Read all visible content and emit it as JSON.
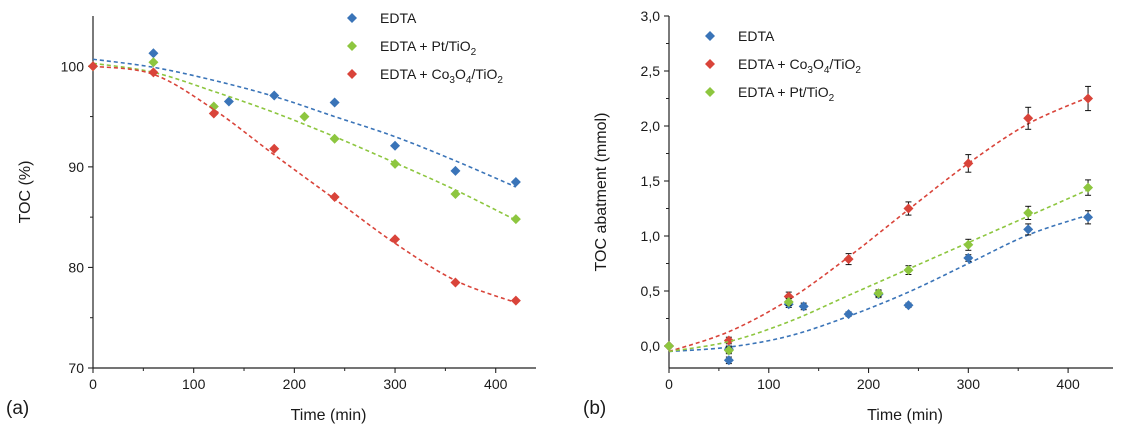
{
  "chart_data": [
    {
      "type": "scatter",
      "panel_label": "(a)",
      "xlabel": "Time (min)",
      "ylabel": "TOC (%)",
      "xlim": [
        0,
        440
      ],
      "ylim": [
        70,
        105
      ],
      "x_ticks": [
        "0",
        "100",
        "200",
        "300",
        "400"
      ],
      "y_ticks": [
        "70",
        "80",
        "90",
        "100"
      ],
      "legend_position": "top-right",
      "series": [
        {
          "name": "EDTA",
          "color": "#3a74b8",
          "x": [
            60,
            135,
            180,
            240,
            300,
            360,
            420
          ],
          "y": [
            101.3,
            96.5,
            97.1,
            96.4,
            92.1,
            89.6,
            88.5
          ],
          "fit": [
            [
              0,
              100.7
            ],
            [
              60,
              99.9
            ],
            [
              120,
              98.6
            ],
            [
              180,
              97.0
            ],
            [
              240,
              95.0
            ],
            [
              300,
              93.0
            ],
            [
              360,
              90.6
            ],
            [
              420,
              88.0
            ]
          ]
        },
        {
          "name": "EDTA + Pt/TiO",
          "sub": "2",
          "color": "#8dc63f",
          "x": [
            0,
            60,
            120,
            210,
            240,
            300,
            360,
            420
          ],
          "y": [
            100.0,
            100.4,
            96.0,
            95.0,
            92.8,
            90.3,
            87.3,
            84.8
          ],
          "fit": [
            [
              0,
              100.3
            ],
            [
              60,
              99.4
            ],
            [
              120,
              97.5
            ],
            [
              180,
              95.4
            ],
            [
              240,
              93.0
            ],
            [
              300,
              90.4
            ],
            [
              360,
              87.7
            ],
            [
              420,
              84.7
            ]
          ]
        },
        {
          "name_parts": [
            "EDTA + Co",
            "3",
            "O",
            "4",
            "/TiO",
            "2"
          ],
          "color": "#d9443a",
          "x": [
            0,
            60,
            120,
            180,
            240,
            300,
            360,
            420
          ],
          "y": [
            100.0,
            99.4,
            95.3,
            91.8,
            87.0,
            82.8,
            78.5,
            76.7
          ],
          "fit": [
            [
              0,
              100.0
            ],
            [
              60,
              99.2
            ],
            [
              120,
              95.7
            ],
            [
              180,
              91.2
            ],
            [
              240,
              86.8
            ],
            [
              300,
              82.4
            ],
            [
              360,
              78.7
            ],
            [
              420,
              76.5
            ]
          ]
        }
      ]
    },
    {
      "type": "scatter",
      "panel_label": "(b)",
      "xlabel": "Time (min)",
      "ylabel": "TOC abatment  (mmol)",
      "xlim": [
        0,
        445
      ],
      "ylim": [
        -0.2,
        3.0
      ],
      "x_ticks": [
        "0",
        "100",
        "200",
        "300",
        "400"
      ],
      "y_ticks": [
        "0,0",
        "0,5",
        "1,0",
        "1,5",
        "2,0",
        "2,5",
        "3,0"
      ],
      "legend_position": "top-left",
      "series": [
        {
          "name": "EDTA",
          "color": "#3a74b8",
          "x": [
            0,
            60,
            60,
            120,
            135,
            180,
            210,
            240,
            300,
            360,
            420
          ],
          "y": [
            0.0,
            -0.13,
            -0.03,
            0.38,
            0.36,
            0.29,
            0.47,
            0.37,
            0.8,
            1.06,
            1.17
          ],
          "err": [
            0,
            0.03,
            0.03,
            0.03,
            0.03,
            0.02,
            0.03,
            0.02,
            0.03,
            0.05,
            0.06
          ],
          "fit": [
            [
              0,
              -0.05
            ],
            [
              60,
              -0.01
            ],
            [
              120,
              0.09
            ],
            [
              180,
              0.27
            ],
            [
              240,
              0.49
            ],
            [
              300,
              0.75
            ],
            [
              360,
              1.01
            ],
            [
              420,
              1.19
            ]
          ]
        },
        {
          "name_parts": [
            "EDTA + Co",
            "3",
            "O",
            "4",
            "/TiO",
            "2"
          ],
          "color": "#d9443a",
          "x": [
            0,
            60,
            120,
            180,
            240,
            300,
            360,
            420
          ],
          "y": [
            0.0,
            0.05,
            0.45,
            0.79,
            1.25,
            1.66,
            2.07,
            2.25
          ],
          "err": [
            0,
            0.03,
            0.04,
            0.05,
            0.06,
            0.08,
            0.1,
            0.11
          ],
          "fit": [
            [
              0,
              -0.05
            ],
            [
              60,
              0.13
            ],
            [
              120,
              0.42
            ],
            [
              180,
              0.81
            ],
            [
              240,
              1.24
            ],
            [
              300,
              1.66
            ],
            [
              360,
              2.02
            ],
            [
              420,
              2.26
            ]
          ]
        },
        {
          "name": "EDTA + Pt/TiO",
          "sub": "2",
          "color": "#8dc63f",
          "x": [
            0,
            60,
            120,
            210,
            240,
            300,
            360,
            420
          ],
          "y": [
            0.0,
            -0.04,
            0.4,
            0.48,
            0.69,
            0.92,
            1.21,
            1.44
          ],
          "err": [
            0,
            0.03,
            0.03,
            0.03,
            0.04,
            0.05,
            0.06,
            0.07
          ],
          "fit": [
            [
              0,
              -0.05
            ],
            [
              60,
              0.04
            ],
            [
              120,
              0.22
            ],
            [
              180,
              0.46
            ],
            [
              240,
              0.7
            ],
            [
              300,
              0.94
            ],
            [
              360,
              1.18
            ],
            [
              420,
              1.42
            ]
          ]
        }
      ]
    }
  ]
}
